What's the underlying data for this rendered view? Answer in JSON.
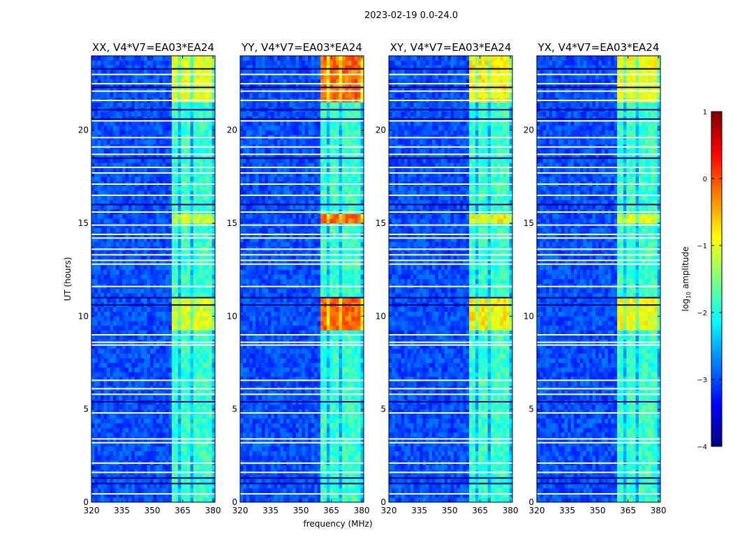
{
  "figure": {
    "suptitle": "2023-02-19 0.0-24.0",
    "xlabel": "frequency (MHz)",
    "ylabel": "UT (hours)",
    "colorbar": {
      "label_main": "log",
      "label_sub": "10",
      "label_rest": " amplitude",
      "range": [
        -4,
        1
      ],
      "ticks": [
        1,
        0,
        -1,
        -2,
        -3,
        -4
      ],
      "tick_labels": [
        "1",
        "0",
        "−1",
        "−2",
        "−3",
        "−4"
      ],
      "colormap": "jet"
    }
  },
  "chart_data": {
    "type": "heatmap",
    "xlim": [
      320,
      381
    ],
    "ylim": [
      0,
      24
    ],
    "x_ticks": [
      320,
      335,
      350,
      365,
      380
    ],
    "x_tick_labels": [
      "320",
      "335",
      "350",
      "365",
      "380"
    ],
    "y_ticks": [
      0,
      5,
      10,
      15,
      20
    ],
    "y_tick_labels": [
      "0",
      "5",
      "10",
      "15",
      "20"
    ],
    "panels": [
      {
        "title": "XX, V4*V7=EA03*EA24",
        "hot_level": -1.3
      },
      {
        "title": "YY, V4*V7=EA03*EA24",
        "hot_level": -0.4
      },
      {
        "title": "XY, V4*V7=EA03*EA24",
        "hot_level": -1.1
      },
      {
        "title": "YX, V4*V7=EA03*EA24",
        "hot_level": -1.2
      }
    ],
    "background_level": -3.0,
    "rfi_band_mhz": [
      359,
      381
    ],
    "rfi_channels_mhz": [
      360.5,
      362.5,
      364.5,
      366,
      368.5,
      370.5,
      372.5,
      374.5,
      376.5,
      378.5
    ],
    "hot_intervals_ut": [
      [
        21.4,
        24.0
      ],
      [
        14.9,
        15.6
      ],
      [
        9.2,
        11.0
      ]
    ],
    "blank_rows_ut": [
      0.45,
      1.6,
      2.1,
      3.2,
      3.4,
      4.8,
      5.8,
      6.1,
      6.55,
      8.45,
      8.6,
      9.0,
      11.6,
      12.8,
      13.0,
      13.3,
      13.6,
      14.2,
      14.4,
      14.9,
      15.6,
      16.5,
      17.1,
      17.7,
      18.0,
      18.7,
      19.1,
      19.6,
      20.5,
      21.6,
      22.1,
      22.5,
      23.0
    ],
    "flagged_rows_ut": [
      1.3,
      1.0,
      5.4,
      10.6,
      11.0,
      16.0,
      18.5,
      19.6,
      20.6,
      21.1,
      22.3,
      23.3
    ]
  }
}
